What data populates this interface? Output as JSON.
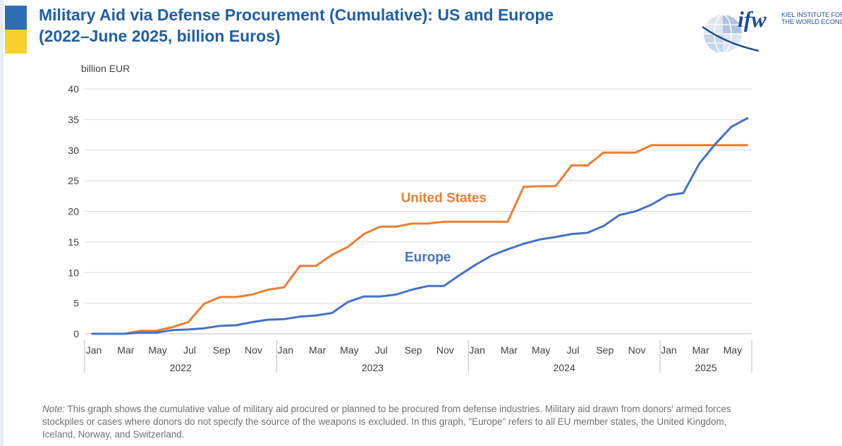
{
  "header": {
    "title_line1": "Military Aid via Defense Procurement (Cumulative): US and Europe",
    "title_line2": "(2022–June 2025, billion Euros)",
    "flag_top_color": "#2f6cb5",
    "flag_bottom_color": "#f8d12b"
  },
  "logo": {
    "wordmark": "ifw",
    "line1": "KIEL INSTITUTE FOR",
    "line2": "THE WORLD ECONOMY"
  },
  "chart_data": {
    "type": "line",
    "ylabel": "billion EUR",
    "ylim": [
      0,
      40
    ],
    "yticks": [
      0,
      5,
      10,
      15,
      20,
      25,
      30,
      35,
      40
    ],
    "grid": true,
    "month_tick_labels": [
      "Jan",
      "Mar",
      "May",
      "Jul",
      "Sep",
      "Nov",
      "Jan",
      "Mar",
      "May",
      "Jul",
      "Sep",
      "Nov",
      "Jan",
      "Mar",
      "May",
      "Jul",
      "Sep",
      "Nov",
      "Jan",
      "Mar",
      "May"
    ],
    "month_tick_index": [
      0,
      2,
      4,
      6,
      8,
      10,
      12,
      14,
      16,
      18,
      20,
      22,
      24,
      26,
      28,
      30,
      32,
      34,
      36,
      38,
      40
    ],
    "years": [
      {
        "label": "2022",
        "start": 0,
        "end": 12
      },
      {
        "label": "2023",
        "start": 12,
        "end": 24
      },
      {
        "label": "2024",
        "start": 24,
        "end": 36
      },
      {
        "label": "2025",
        "start": 36,
        "end": 42
      }
    ],
    "series": [
      {
        "name": "United States",
        "color": "#ed7d31",
        "label_anchor_month": 22,
        "label_anchor_value": 21.5,
        "values": [
          0,
          0,
          0,
          0.5,
          0.5,
          1.1,
          1.9,
          4.9,
          6.0,
          6.0,
          6.4,
          7.2,
          7.6,
          11.1,
          11.1,
          12.9,
          14.2,
          16.3,
          17.5,
          17.5,
          18.0,
          18.0,
          18.3,
          18.3,
          18.3,
          18.3,
          18.3,
          24.0,
          24.1,
          24.1,
          27.5,
          27.5,
          29.6,
          29.6,
          29.6,
          30.8,
          30.8,
          30.8,
          30.8,
          30.8,
          30.8,
          30.8
        ]
      },
      {
        "name": "Europe",
        "color": "#4472c4",
        "label_anchor_month": 21,
        "label_anchor_value": 11.8,
        "values": [
          0,
          0,
          0,
          0.2,
          0.2,
          0.6,
          0.7,
          0.9,
          1.3,
          1.4,
          1.9,
          2.3,
          2.4,
          2.8,
          3.0,
          3.4,
          5.2,
          6.1,
          6.1,
          6.4,
          7.2,
          7.8,
          7.8,
          9.6,
          11.3,
          12.8,
          13.8,
          14.7,
          15.4,
          15.8,
          16.3,
          16.5,
          17.6,
          19.4,
          20.0,
          21.1,
          22.6,
          23.0,
          27.8,
          31.0,
          33.8,
          35.2
        ]
      }
    ]
  },
  "note": {
    "label": "Note:",
    "text": " This graph shows the cumulative value of military aid procured or planned to be procured from defense industries. Military aid drawn from donors' armed forces stockpiles or cases where donors do not specify the source of the weapons is excluded. In this graph, \"Europe\" refers to all EU member states, the United Kingdom, Iceland, Norway, and Switzerland."
  }
}
